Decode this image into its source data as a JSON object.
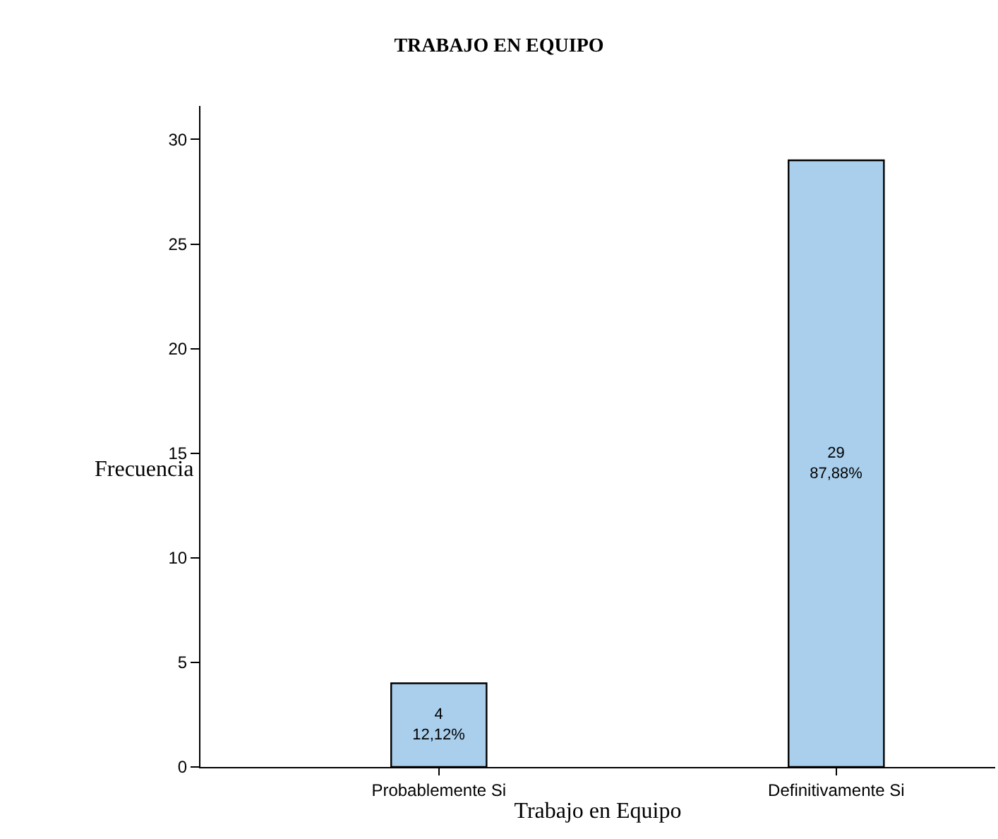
{
  "chart_data": {
    "type": "bar",
    "title": "TRABAJO EN EQUIPO",
    "xlabel": "Trabajo en Equipo",
    "ylabel": "Frecuencia",
    "categories": [
      "Probablemente Si",
      "Definitivamente Si"
    ],
    "values": [
      4,
      29
    ],
    "value_labels": [
      "4\n12,12%",
      "29\n87,88%"
    ],
    "color": "#a9cfec",
    "ylim": [
      0,
      31.6
    ],
    "yticks": [
      0,
      5,
      10,
      15,
      20,
      25,
      30
    ],
    "grid": false,
    "legend": false
  }
}
